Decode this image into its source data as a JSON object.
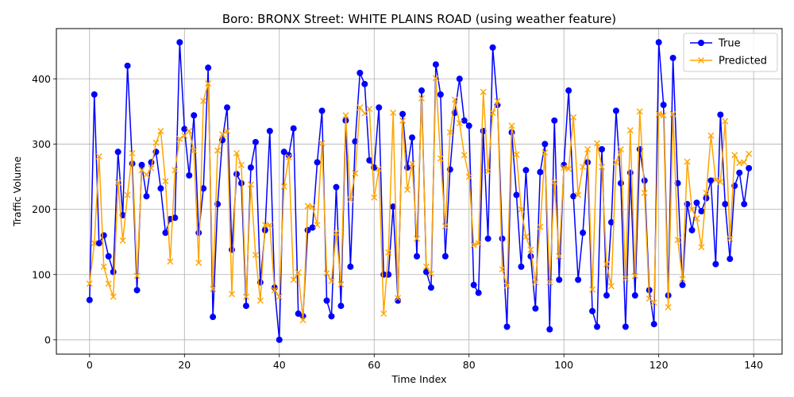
{
  "chart_data": {
    "type": "line",
    "title": "Boro: BRONX Street: WHITE PLAINS ROAD (using weather feature)",
    "xlabel": "Time Index",
    "ylabel": "Traffic Volume",
    "xlim": [
      -7,
      146
    ],
    "ylim": [
      -22,
      477
    ],
    "xticks": [
      0,
      20,
      40,
      60,
      80,
      100,
      120,
      140
    ],
    "yticks": [
      0,
      100,
      200,
      300,
      400
    ],
    "grid": true,
    "legend_position": "top-right",
    "series": [
      {
        "name": "True",
        "color": "#0000ff",
        "marker": "circle",
        "values": [
          61,
          376,
          148,
          160,
          128,
          104,
          288,
          191,
          420,
          270,
          76,
          268,
          220,
          272,
          288,
          232,
          164,
          185,
          187,
          456,
          323,
          252,
          344,
          164,
          232,
          417,
          35,
          208,
          306,
          356,
          138,
          254,
          240,
          52,
          264,
          303,
          88,
          168,
          320,
          80,
          0,
          288,
          283,
          324,
          40,
          36,
          168,
          172,
          272,
          351,
          60,
          36,
          234,
          52,
          336,
          112,
          304,
          409,
          392,
          275,
          264,
          356,
          100,
          100,
          204,
          60,
          346,
          264,
          310,
          128,
          382,
          104,
          80,
          422,
          376,
          128,
          261,
          348,
          400,
          336,
          328,
          84,
          72,
          320,
          155,
          448,
          360,
          155,
          20,
          318,
          222,
          112,
          260,
          128,
          48,
          257,
          300,
          16,
          336,
          92,
          268,
          382,
          220,
          92,
          164,
          272,
          44,
          20,
          292,
          68,
          180,
          351,
          240,
          20,
          256,
          68,
          292,
          244,
          76,
          24,
          456,
          360,
          68,
          432,
          240,
          84,
          208,
          168,
          210,
          197,
          217,
          244,
          116,
          345,
          208,
          124,
          236,
          256,
          208,
          263
        ]
      },
      {
        "name": "Predicted",
        "color": "#ffa500",
        "marker": "x",
        "values": [
          86,
          148,
          281,
          112,
          86,
          66,
          241,
          152,
          222,
          286,
          98,
          260,
          253,
          263,
          302,
          320,
          243,
          120,
          260,
          308,
          313,
          320,
          290,
          118,
          366,
          393,
          78,
          290,
          315,
          320,
          70,
          286,
          268,
          66,
          238,
          130,
          60,
          176,
          176,
          76,
          66,
          235,
          280,
          92,
          103,
          30,
          205,
          204,
          176,
          301,
          102,
          90,
          164,
          85,
          344,
          215,
          255,
          356,
          347,
          354,
          218,
          262,
          40,
          134,
          348,
          64,
          336,
          230,
          270,
          155,
          370,
          112,
          101,
          401,
          278,
          174,
          318,
          368,
          332,
          283,
          250,
          145,
          148,
          380,
          258,
          348,
          366,
          108,
          83,
          328,
          284,
          200,
          158,
          138,
          88,
          173,
          287,
          88,
          242,
          128,
          264,
          262,
          341,
          222,
          265,
          292,
          77,
          301,
          265,
          116,
          82,
          272,
          292,
          94,
          321,
          98,
          350,
          225,
          63,
          57,
          346,
          344,
          50,
          346,
          153,
          93,
          273,
          200,
          186,
          142,
          225,
          313,
          245,
          242,
          335,
          155,
          283,
          271,
          272,
          285
        ]
      }
    ]
  }
}
